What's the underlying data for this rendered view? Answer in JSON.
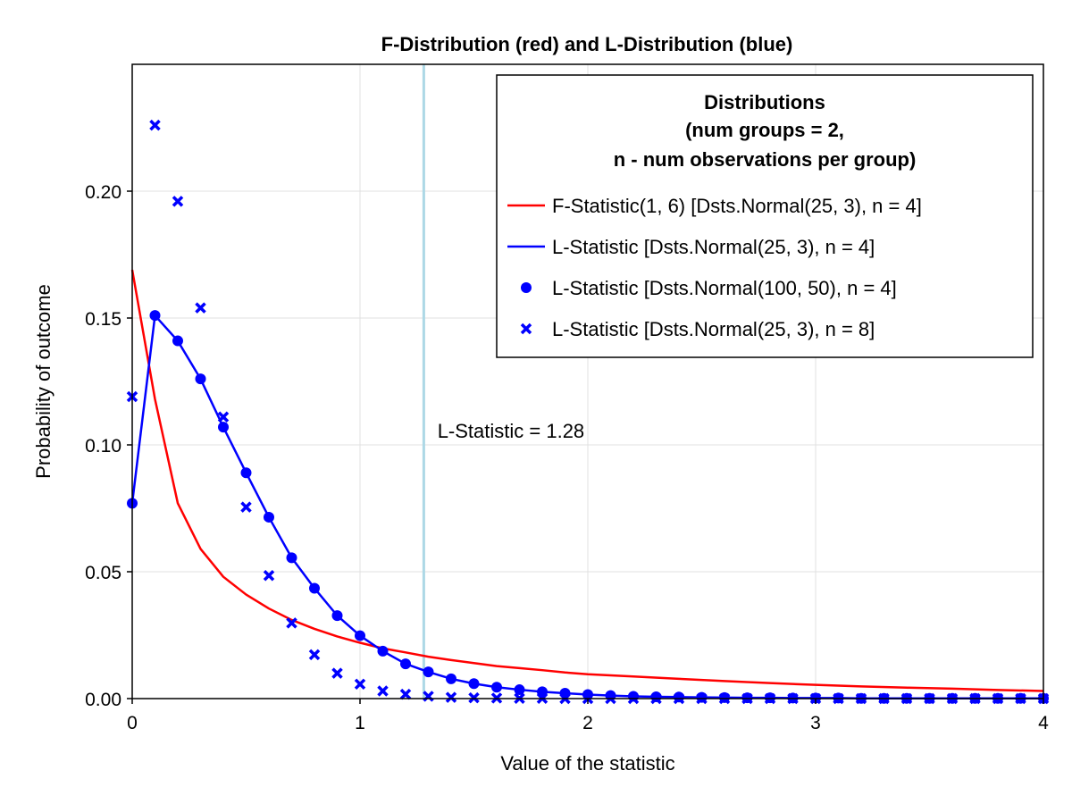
{
  "chart_data": {
    "type": "line",
    "title": "F-Distribution (red) and L-Distribution (blue)",
    "xlabel": "Value of the statistic",
    "ylabel": "Probability of outcome",
    "xlim": [
      0,
      4
    ],
    "ylim": [
      0,
      0.25
    ],
    "xticks": [
      "0",
      "1",
      "2",
      "3",
      "4"
    ],
    "yticks": [
      "0.00",
      "0.05",
      "0.10",
      "0.15",
      "0.20"
    ],
    "grid": true,
    "legend": {
      "placement": "top-right",
      "title": [
        "Distributions",
        "(num groups = 2,",
        "n - num observations per group)"
      ]
    },
    "colors": {
      "red": "#ff0000",
      "blue": "#0000ff",
      "vline": "#add8e6"
    },
    "series": [
      {
        "name": "F-Statistic(1, 6) [Dsts.Normal(25, 3), n = 4]",
        "kind": "line",
        "color": "#ff0000",
        "x": [
          0,
          0.1,
          0.2,
          0.3,
          0.4,
          0.5,
          0.6,
          0.7,
          0.8,
          0.9,
          1.0,
          1.1,
          1.2,
          1.3,
          1.4,
          1.5,
          1.6,
          1.7,
          1.8,
          1.9,
          2.0,
          2.2,
          2.4,
          2.6,
          2.8,
          3.0,
          3.2,
          3.4,
          3.6,
          3.8,
          4.0
        ],
        "y": [
          0.169,
          0.118,
          0.077,
          0.059,
          0.048,
          0.041,
          0.0355,
          0.031,
          0.0275,
          0.0245,
          0.022,
          0.0198,
          0.0182,
          0.0165,
          0.0152,
          0.014,
          0.0128,
          0.012,
          0.0112,
          0.0103,
          0.0096,
          0.0087,
          0.0078,
          0.0069,
          0.0061,
          0.0054,
          0.0048,
          0.0043,
          0.0039,
          0.0034,
          0.003
        ]
      },
      {
        "name": "L-Statistic [Dsts.Normal(25, 3), n = 4]",
        "kind": "line",
        "color": "#0000ff",
        "x": [
          0,
          0.1,
          0.2,
          0.3,
          0.4,
          0.5,
          0.6,
          0.7,
          0.8,
          0.9,
          1.0,
          1.1,
          1.2,
          1.3,
          1.4,
          1.5,
          1.6,
          1.7,
          1.8,
          1.9,
          2.0,
          2.1,
          2.2,
          2.3,
          2.4,
          2.5,
          2.6,
          2.7,
          2.8,
          2.9,
          3.0,
          3.1,
          3.2,
          3.3,
          3.4,
          3.5,
          3.6,
          3.7,
          3.8,
          3.9,
          4.0
        ],
        "y": [
          0.077,
          0.151,
          0.141,
          0.126,
          0.107,
          0.089,
          0.0715,
          0.0555,
          0.0435,
          0.0327,
          0.0248,
          0.0187,
          0.0137,
          0.0105,
          0.0078,
          0.0059,
          0.0045,
          0.0035,
          0.0027,
          0.0021,
          0.0016,
          0.0012,
          0.0009,
          0.0007,
          0.0006,
          0.0005,
          0.0004,
          0.0003,
          0.0003,
          0.0002,
          0.0002,
          0.0002,
          0.0001,
          0.0001,
          0.0001,
          0.0001,
          0.0001,
          0.0001,
          0.0001,
          0.0001,
          0.0001
        ]
      },
      {
        "name": "L-Statistic [Dsts.Normal(100, 50), n = 4]",
        "kind": "scatter",
        "marker": "circle",
        "color": "#0000ff",
        "x": [
          0,
          0.1,
          0.2,
          0.3,
          0.4,
          0.5,
          0.6,
          0.7,
          0.8,
          0.9,
          1.0,
          1.1,
          1.2,
          1.3,
          1.4,
          1.5,
          1.6,
          1.7,
          1.8,
          1.9,
          2.0,
          2.1,
          2.2,
          2.3,
          2.4,
          2.5,
          2.6,
          2.7,
          2.8,
          2.9,
          3.0,
          3.1,
          3.2,
          3.3,
          3.4,
          3.5,
          3.6,
          3.7,
          3.8,
          3.9,
          4.0
        ],
        "y": [
          0.077,
          0.151,
          0.141,
          0.126,
          0.107,
          0.089,
          0.0715,
          0.0555,
          0.0435,
          0.0327,
          0.0248,
          0.0187,
          0.0137,
          0.0105,
          0.0078,
          0.0059,
          0.0045,
          0.0035,
          0.0027,
          0.0021,
          0.0016,
          0.0012,
          0.0009,
          0.0007,
          0.0006,
          0.0005,
          0.0004,
          0.0003,
          0.0003,
          0.0002,
          0.0002,
          0.0002,
          0.0001,
          0.0001,
          0.0001,
          0.0001,
          0.0001,
          0.0001,
          0.0001,
          0.0001,
          0.0001
        ]
      },
      {
        "name": "L-Statistic [Dsts.Normal(25, 3), n = 8]",
        "kind": "scatter",
        "marker": "x",
        "color": "#0000ff",
        "x": [
          0,
          0.1,
          0.2,
          0.3,
          0.4,
          0.5,
          0.6,
          0.7,
          0.8,
          0.9,
          1.0,
          1.1,
          1.2,
          1.3,
          1.4,
          1.5,
          1.6,
          1.7,
          1.8,
          1.9,
          2.0,
          2.1,
          2.2,
          2.3,
          2.4,
          2.5,
          2.6,
          2.7,
          2.8,
          2.9,
          3.0,
          3.1,
          3.2,
          3.3,
          3.4,
          3.5,
          3.6,
          3.7,
          3.8,
          3.9,
          4.0
        ],
        "y": [
          0.119,
          0.226,
          0.196,
          0.154,
          0.111,
          0.0755,
          0.0485,
          0.0298,
          0.0173,
          0.01,
          0.0057,
          0.003,
          0.0017,
          0.0009,
          0.0005,
          0.0003,
          0.0002,
          0.0001,
          0.0001,
          0,
          0,
          0,
          0,
          0,
          0,
          0,
          0,
          0,
          0,
          0,
          0,
          0,
          0,
          0,
          0,
          0,
          0,
          0,
          0,
          0,
          0
        ]
      }
    ],
    "vline": {
      "x": 1.28,
      "color": "#add8e6"
    },
    "annotation": {
      "text": "L-Statistic = 1.28",
      "x": 1.34,
      "y": 0.1
    }
  }
}
